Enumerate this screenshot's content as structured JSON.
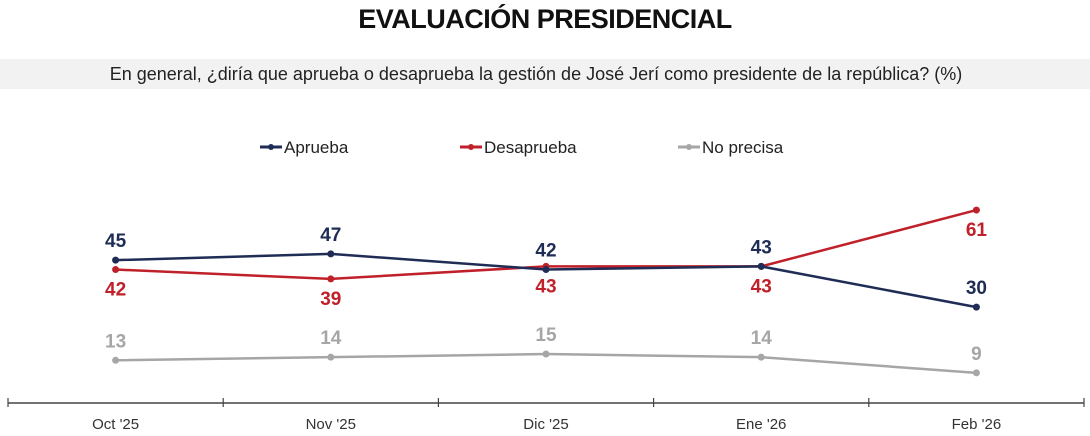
{
  "chart_data": {
    "type": "line",
    "title": "EVALUACIÓN PRESIDENCIAL",
    "subtitle": "En general, ¿diría que aprueba o desaprueba la gestión de José Jerí como presidente de la república? (%)",
    "categories": [
      "Oct '25",
      "Nov '25",
      "Dic '25",
      "Ene '26",
      "Feb '26"
    ],
    "series": [
      {
        "name": "Aprueba",
        "color": "#1f2d56",
        "values": [
          45,
          47,
          42,
          43,
          30
        ],
        "label_pos": "above"
      },
      {
        "name": "Desaprueba",
        "color": "#c0202a",
        "values": [
          42,
          39,
          43,
          43,
          61
        ],
        "label_pos": "below"
      },
      {
        "name": "No precisa",
        "color": "#a6a6a6",
        "values": [
          13,
          14,
          15,
          14,
          9
        ],
        "label_pos": "above"
      }
    ],
    "ylim": [
      0,
      65
    ],
    "legend": "top",
    "grid": false
  }
}
